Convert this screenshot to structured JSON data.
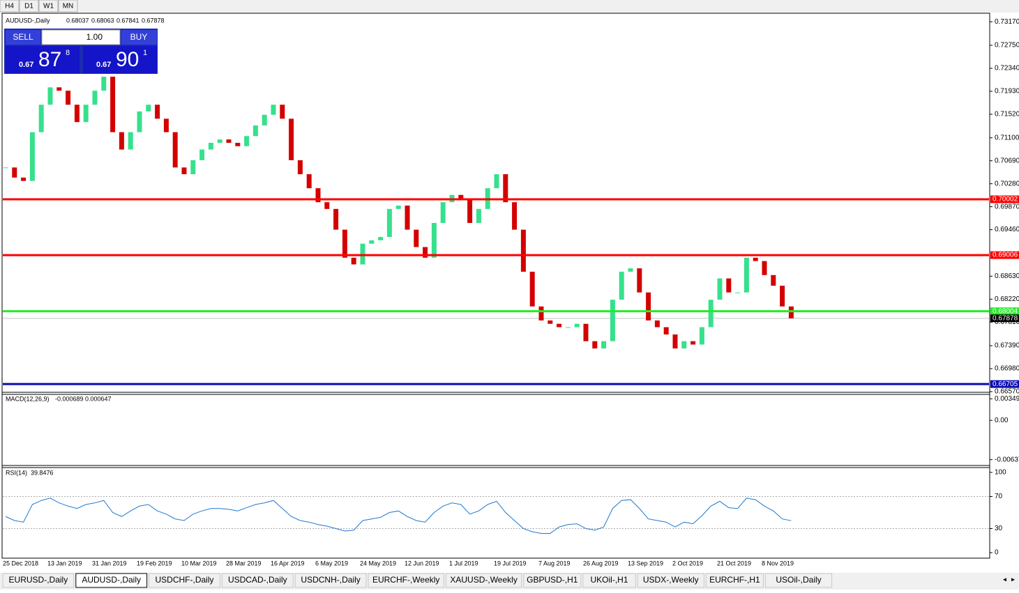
{
  "toolbar": {
    "timeframes": [
      "H4",
      "D1",
      "W1",
      "MN"
    ]
  },
  "trade_panel": {
    "sell": "SELL",
    "buy": "BUY",
    "lot": "1.00",
    "bid": {
      "prefix": "0.67",
      "main": "87",
      "small": "8"
    },
    "ask": {
      "prefix": "0.67",
      "main": "90",
      "small": "1"
    }
  },
  "chart_data": {
    "type": "candlestick",
    "title": "AUDUSD-,Daily",
    "quote": {
      "open": 0.68037,
      "high": 0.68063,
      "low": 0.67841,
      "close": 0.67878
    },
    "up_color": "#36e08c",
    "down_color": "#d40000",
    "categories": [
      "25 Dec 2018",
      null,
      null,
      null,
      null,
      "13 Jan 2019",
      null,
      null,
      null,
      null,
      "31 Jan 2019",
      null,
      null,
      null,
      null,
      "19 Feb 2019",
      null,
      null,
      null,
      null,
      "10 Mar 2019",
      null,
      null,
      null,
      null,
      "28 Mar 2019",
      null,
      null,
      null,
      null,
      "16 Apr 2019",
      null,
      null,
      null,
      null,
      "6 May 2019",
      null,
      null,
      null,
      null,
      "24 May 2019",
      null,
      null,
      null,
      null,
      "12 Jun 2019",
      null,
      null,
      null,
      null,
      "1 Jul 2019",
      null,
      null,
      null,
      null,
      "19 Jul 2019",
      null,
      null,
      null,
      null,
      "7 Aug 2019",
      null,
      null,
      null,
      null,
      "26 Aug 2019",
      null,
      null,
      null,
      null,
      "13 Sep 2019",
      null,
      null,
      null,
      null,
      "2 Oct 2019",
      null,
      null,
      null,
      null,
      "21 Oct 2019",
      null,
      null,
      null,
      null,
      "8 Nov 2019",
      null,
      null,
      null
    ],
    "close": [
      0.7057,
      0.7039,
      0.7033,
      0.712,
      0.7169,
      0.72,
      0.7194,
      0.7169,
      0.7138,
      0.7169,
      0.7194,
      0.7219,
      0.712,
      0.7089,
      0.712,
      0.7157,
      0.7169,
      0.7144,
      0.712,
      0.7057,
      0.7045,
      0.707,
      0.7089,
      0.7101,
      0.7107,
      0.7101,
      0.7095,
      0.7113,
      0.7132,
      0.7151,
      0.7169,
      0.7144,
      0.707,
      0.7045,
      0.702,
      0.6995,
      0.6983,
      0.6946,
      0.6896,
      0.6884,
      0.6921,
      0.6927,
      0.6933,
      0.6983,
      0.6989,
      0.6946,
      0.6915,
      0.6896,
      0.6958,
      0.6995,
      0.7008,
      0.7002,
      0.6958,
      0.6983,
      0.702,
      0.7045,
      0.6995,
      0.6946,
      0.6871,
      0.6809,
      0.6784,
      0.6778,
      0.6772,
      0.6772,
      0.6778,
      0.6747,
      0.6734,
      0.6747,
      0.6821,
      0.6871,
      0.6877,
      0.6834,
      0.6784,
      0.6772,
      0.6759,
      0.6734,
      0.6747,
      0.6741,
      0.6772,
      0.6821,
      0.6859,
      0.6834,
      0.6834,
      0.6896,
      0.689,
      0.6865,
      0.6846,
      0.6809,
      0.67878
    ],
    "ylim": [
      0.6657,
      0.7331
    ],
    "yticks": [
      {
        "value": 0.7317,
        "label": "0.73170"
      },
      {
        "value": 0.7275,
        "label": "0.72750"
      },
      {
        "value": 0.7234,
        "label": "0.72340"
      },
      {
        "value": 0.7193,
        "label": "0.71930"
      },
      {
        "value": 0.7152,
        "label": "0.71520"
      },
      {
        "value": 0.711,
        "label": "0.71100"
      },
      {
        "value": 0.7069,
        "label": "0.70690"
      },
      {
        "value": 0.7028,
        "label": "0.70280"
      },
      {
        "value": 0.6987,
        "label": "0.69870"
      },
      {
        "value": 0.6946,
        "label": "0.69460"
      },
      {
        "value": 0.6863,
        "label": "0.68630"
      },
      {
        "value": 0.6822,
        "label": "0.68220"
      },
      {
        "value": 0.6781,
        "label": "0.67810"
      },
      {
        "value": 0.6739,
        "label": "0.67390"
      },
      {
        "value": 0.6698,
        "label": "0.66980"
      },
      {
        "value": 0.6657,
        "label": "0.66570"
      }
    ],
    "levels": [
      {
        "value": 0.70002,
        "color": "#ff0000"
      },
      {
        "value": 0.69006,
        "color": "#ff0000"
      },
      {
        "value": 0.68004,
        "color": "#22ee22"
      },
      {
        "value": 0.66705,
        "color": "#0a0ab4"
      }
    ],
    "macd": {
      "label": "MACD(12,26,9)",
      "values": [
        -0.000689,
        0.000647
      ],
      "ylim": [
        -0.0072,
        0.0042
      ],
      "yticks": [
        0.00349,
        {
          "value": 0,
          "label": "0.00"
        },
        -0.00637
      ]
    },
    "rsi": {
      "label": "RSI(14)",
      "color": "#1e78d2",
      "ylim": [
        -6,
        106
      ],
      "yticks": [
        100,
        70,
        30,
        0
      ],
      "levels": [
        70,
        30
      ],
      "values": [
        45,
        40,
        38,
        60,
        65,
        68,
        62,
        58,
        55,
        60,
        62,
        65,
        50,
        45,
        52,
        58,
        60,
        52,
        48,
        42,
        40,
        48,
        52,
        55,
        55,
        54,
        52,
        56,
        60,
        62,
        65,
        55,
        45,
        40,
        38,
        35,
        33,
        30,
        27,
        28,
        40,
        42,
        44,
        50,
        52,
        45,
        40,
        38,
        50,
        58,
        62,
        60,
        48,
        52,
        60,
        64,
        50,
        40,
        30,
        26,
        24,
        24,
        32,
        35,
        36,
        30,
        28,
        32,
        55,
        65,
        66,
        55,
        42,
        40,
        38,
        32,
        38,
        36,
        46,
        58,
        64,
        56,
        55,
        68,
        66,
        58,
        52,
        42,
        39.8476
      ]
    }
  },
  "tabs": {
    "active_index": 1,
    "items": [
      "EURUSD-,Daily",
      "AUDUSD-,Daily",
      "USDCHF-,Daily",
      "USDCAD-,Daily",
      "USDCNH-,Daily",
      "EURCHF-,Weekly",
      "XAUUSD-,Weekly",
      "GBPUSD-,H1",
      "UKOil-,H1",
      "USDX-,Weekly",
      "EURCHF-,H1",
      "USOil-,Daily"
    ]
  }
}
